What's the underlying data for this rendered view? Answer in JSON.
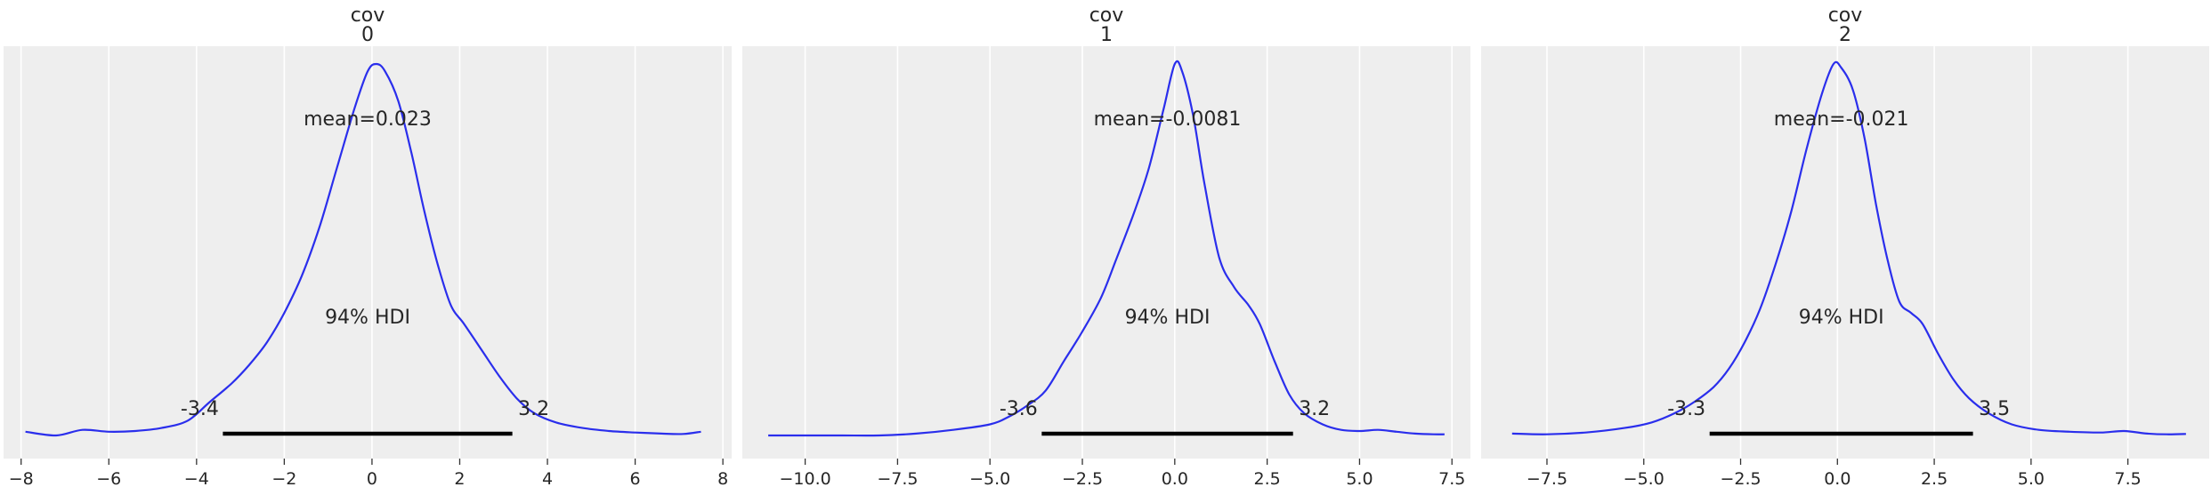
{
  "chart_data": [
    {
      "type": "line",
      "title_line1": "cov",
      "title_line2": "0",
      "mean_label": "mean=0.023",
      "hdi_label": "94% HDI",
      "hdi_low_label": "-3.4",
      "hdi_high_label": "3.2",
      "hdi": [
        -3.4,
        3.2
      ],
      "xlim": [
        -8.4,
        8.2
      ],
      "ylim": [
        0,
        1.05
      ],
      "xticks": [
        -8,
        -6,
        -4,
        -2,
        0,
        2,
        4,
        6,
        8
      ],
      "xtick_labels": [
        "−8",
        "−6",
        "−4",
        "−2",
        "0",
        "2",
        "4",
        "6",
        "8"
      ],
      "x": [
        -7.9,
        -7.2,
        -6.6,
        -6.0,
        -5.4,
        -4.8,
        -4.2,
        -3.7,
        -3.2,
        -2.8,
        -2.4,
        -2.0,
        -1.6,
        -1.2,
        -0.8,
        -0.4,
        -0.1,
        0.1,
        0.3,
        0.6,
        0.9,
        1.2,
        1.5,
        1.8,
        2.1,
        2.5,
        2.9,
        3.3,
        3.7,
        4.2,
        4.8,
        5.4,
        6.0,
        6.6,
        7.1,
        7.5
      ],
      "y": [
        0.01,
        0.0,
        0.015,
        0.01,
        0.012,
        0.02,
        0.04,
        0.09,
        0.14,
        0.19,
        0.25,
        0.33,
        0.43,
        0.56,
        0.72,
        0.88,
        0.98,
        1.0,
        0.98,
        0.9,
        0.76,
        0.6,
        0.46,
        0.35,
        0.3,
        0.23,
        0.16,
        0.1,
        0.06,
        0.035,
        0.02,
        0.012,
        0.008,
        0.005,
        0.004,
        0.01
      ]
    },
    {
      "type": "line",
      "title_line1": "cov",
      "title_line2": "1",
      "mean_label": "mean=-0.0081",
      "hdi_label": "94% HDI",
      "hdi_low_label": "-3.6",
      "hdi_high_label": "3.2",
      "hdi": [
        -3.6,
        3.2
      ],
      "xlim": [
        -11.7,
        8.0
      ],
      "ylim": [
        0,
        1.05
      ],
      "xticks": [
        -10,
        -7.5,
        -5,
        -2.5,
        0,
        2.5,
        5,
        7.5
      ],
      "xtick_labels": [
        "−10.0",
        "−7.5",
        "−5.0",
        "−2.5",
        "0.0",
        "2.5",
        "5.0",
        "7.5"
      ],
      "x": [
        -11.0,
        -10.0,
        -9.0,
        -8.0,
        -7.0,
        -6.0,
        -5.0,
        -4.5,
        -4.0,
        -3.5,
        -3.0,
        -2.5,
        -2.0,
        -1.6,
        -1.1,
        -0.7,
        -0.3,
        0.0,
        0.2,
        0.5,
        0.8,
        1.2,
        1.6,
        2.0,
        2.3,
        2.7,
        3.1,
        3.5,
        4.0,
        4.5,
        5.0,
        5.5,
        6.0,
        6.5,
        7.0,
        7.3
      ],
      "y": [
        0.0,
        0.0,
        0.0,
        0.0,
        0.005,
        0.015,
        0.03,
        0.05,
        0.08,
        0.12,
        0.2,
        0.28,
        0.37,
        0.47,
        0.6,
        0.72,
        0.88,
        1.0,
        0.98,
        0.86,
        0.68,
        0.48,
        0.4,
        0.35,
        0.3,
        0.2,
        0.11,
        0.06,
        0.03,
        0.015,
        0.012,
        0.015,
        0.01,
        0.005,
        0.003,
        0.003
      ]
    },
    {
      "type": "line",
      "title_line1": "cov",
      "title_line2": "2",
      "mean_label": "mean=-0.021",
      "hdi_label": "94% HDI",
      "hdi_low_label": "-3.3",
      "hdi_high_label": "3.5",
      "hdi": [
        -3.3,
        3.5
      ],
      "xlim": [
        -9.2,
        9.6
      ],
      "ylim": [
        0,
        1.05
      ],
      "xticks": [
        -7.5,
        -5,
        -2.5,
        0,
        2.5,
        5,
        7.5
      ],
      "xtick_labels": [
        "−7.5",
        "−5.0",
        "−2.5",
        "0.0",
        "2.5",
        "5.0",
        "7.5"
      ],
      "x": [
        -8.4,
        -7.5,
        -6.5,
        -5.5,
        -4.8,
        -4.2,
        -3.7,
        -3.2,
        -2.8,
        -2.4,
        -2.0,
        -1.6,
        -1.2,
        -0.8,
        -0.4,
        -0.1,
        0.1,
        0.4,
        0.7,
        1.0,
        1.3,
        1.6,
        1.9,
        2.2,
        2.6,
        3.0,
        3.4,
        3.9,
        4.5,
        5.2,
        6.0,
        6.8,
        7.4,
        8.0,
        8.5,
        9.0
      ],
      "y": [
        0.005,
        0.003,
        0.008,
        0.02,
        0.035,
        0.06,
        0.09,
        0.13,
        0.18,
        0.25,
        0.34,
        0.46,
        0.6,
        0.77,
        0.92,
        1.0,
        0.99,
        0.93,
        0.8,
        0.62,
        0.47,
        0.36,
        0.33,
        0.3,
        0.22,
        0.15,
        0.1,
        0.06,
        0.03,
        0.015,
        0.01,
        0.008,
        0.012,
        0.005,
        0.003,
        0.004
      ]
    }
  ]
}
